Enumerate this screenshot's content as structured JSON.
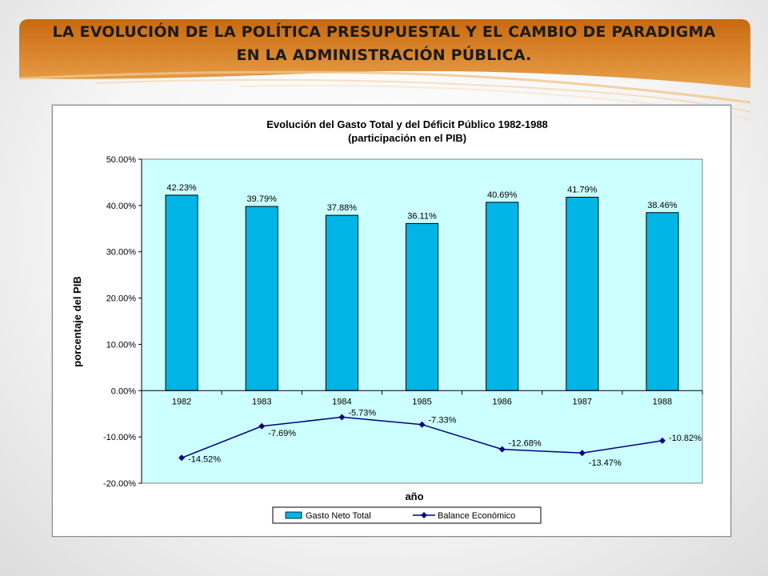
{
  "slide": {
    "title": "LA EVOLUCIÓN DE LA POLÍTICA PRESUPUESTAL Y EL CAMBIO DE PARADIGMA EN LA ADMINISTRACIÓN PÚBLICA."
  },
  "colors": {
    "banner_top": "#c8690f",
    "banner_bottom": "#e9a24c",
    "plot_bg": "#ccffff",
    "bar_fill": "#00b4e6",
    "bar_edge": "#000000",
    "line_color": "#000080"
  },
  "chart_data": {
    "type": "bar",
    "title": "Evolución del Gasto Total y del Déficit Público 1982-1988",
    "subtitle": "(participación en el PIB)",
    "xlabel": "año",
    "ylabel": "porcentaje del PIB",
    "ylim": [
      -20,
      50
    ],
    "yticks": [
      50,
      40,
      30,
      20,
      10,
      0,
      -10,
      -20
    ],
    "ytick_labels": [
      "50.00%",
      "40.00%",
      "30.00%",
      "20.00%",
      "10.00%",
      "0.00%",
      "-10.00%",
      "-20.00%"
    ],
    "categories": [
      "1982",
      "1983",
      "1984",
      "1985",
      "1986",
      "1987",
      "1988"
    ],
    "grid": false,
    "legend_position": "bottom",
    "series": [
      {
        "name": "Gasto Neto Total",
        "kind": "bar",
        "values": [
          42.23,
          39.79,
          37.88,
          36.11,
          40.69,
          41.79,
          38.46
        ],
        "labels": [
          "42.23%",
          "39.79%",
          "37.88%",
          "36.11%",
          "40.69%",
          "41.79%",
          "38.46%"
        ]
      },
      {
        "name": "Balance Económico",
        "kind": "line",
        "marker": "diamond",
        "values": [
          -14.52,
          -7.69,
          -5.73,
          -7.33,
          -12.68,
          -13.47,
          -10.82
        ],
        "labels": [
          "-14.52%",
          "-7.69%",
          "-5.73%",
          "-7.33%",
          "-12.68%",
          "-13.47%",
          "-10.82%"
        ]
      }
    ]
  }
}
